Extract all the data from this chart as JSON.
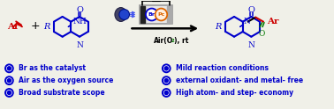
{
  "bg_color": "#f0f0e8",
  "blue": "#0000cc",
  "red": "#cc0000",
  "green": "#007700",
  "black": "#000000",
  "orange": "#dd6600",
  "gray_dark": "#333333",
  "gray_med": "#888888",
  "gray_light": "#cccccc",
  "bullet_left": [
    "Br as the catalyst",
    "Air as the oxygen source",
    "Broad substrate scope"
  ],
  "bullet_right": [
    "Mild reaction conditions",
    "external oxidant- and metal- free",
    "High atom- and step- economy"
  ]
}
